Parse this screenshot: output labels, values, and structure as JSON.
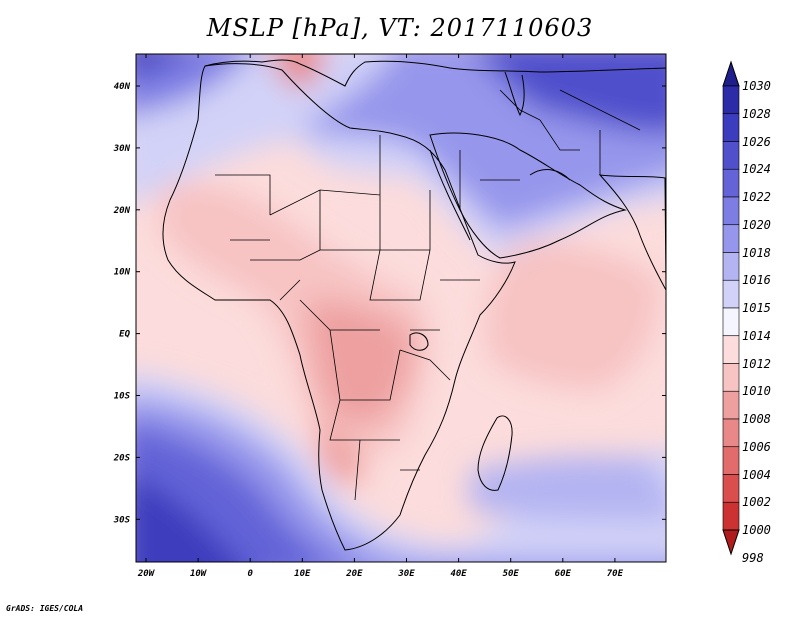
{
  "title": "MSLP [hPa], VT: 2017110603",
  "credit": "GrADS: IGES/COLA",
  "axes": {
    "lon_labels": [
      "20W",
      "10W",
      "0",
      "10E",
      "20E",
      "30E",
      "40E",
      "50E",
      "60E",
      "70E"
    ],
    "lat_labels": [
      "40N",
      "30N",
      "20N",
      "10N",
      "EQ",
      "10S",
      "20S",
      "30S"
    ]
  },
  "colorbar": {
    "levels": [
      "1030",
      "1028",
      "1026",
      "1024",
      "1022",
      "1020",
      "1018",
      "1016",
      "1015",
      "1014",
      "1012",
      "1010",
      "1008",
      "1006",
      "1004",
      "1002",
      "1000",
      "998"
    ],
    "colors": [
      "#1e1e8c",
      "#2c2ca8",
      "#3c3cbe",
      "#5050cc",
      "#6464d8",
      "#7d7de4",
      "#9696ec",
      "#b4b4f2",
      "#d2d2f8",
      "#f5f5ff",
      "#fcdcdc",
      "#f7c3c3",
      "#eea0a0",
      "#e88888",
      "#e26b6b",
      "#da4e4e",
      "#cc3232",
      "#b01c1c"
    ]
  },
  "colors": {
    "land_outline": "#000000",
    "background": "#ffffff"
  }
}
